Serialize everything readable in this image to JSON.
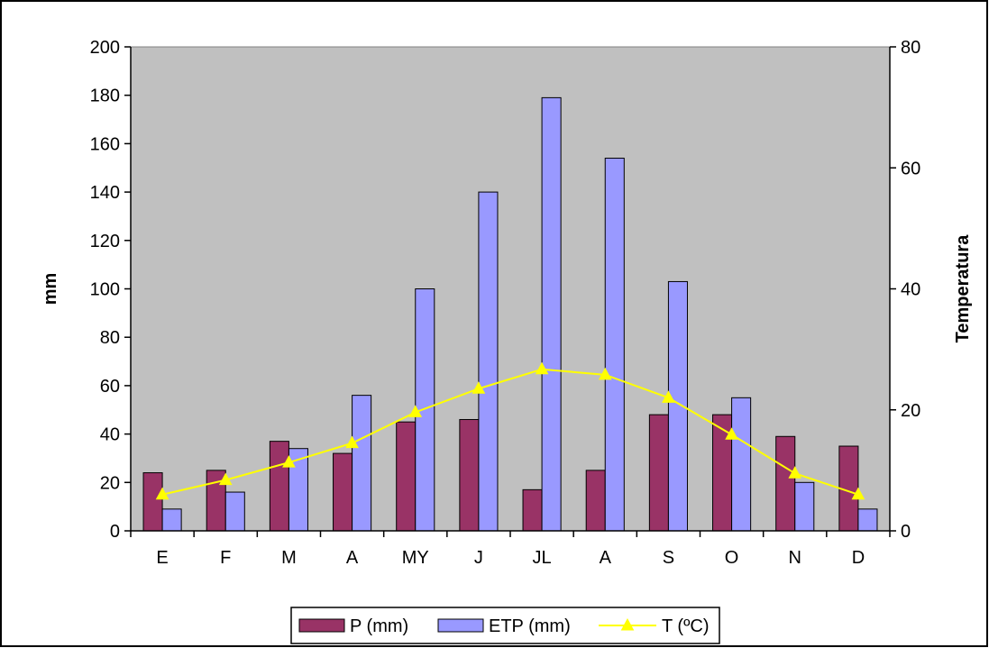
{
  "chart_data": {
    "type": "bar",
    "categories": [
      "E",
      "F",
      "M",
      "A",
      "MY",
      "J",
      "JL",
      "A",
      "S",
      "O",
      "N",
      "D"
    ],
    "series": [
      {
        "name": "P (mm)",
        "kind": "bar",
        "axis": "left",
        "color": "#993366",
        "values": [
          24,
          25,
          37,
          32,
          45,
          46,
          17,
          25,
          48,
          48,
          39,
          35
        ]
      },
      {
        "name": "ETP (mm)",
        "kind": "bar",
        "axis": "left",
        "color": "#9999FF",
        "values": [
          9,
          16,
          34,
          56,
          100,
          140,
          179,
          154,
          103,
          55,
          20,
          9
        ]
      },
      {
        "name": "T (ºC)",
        "kind": "line",
        "axis": "right",
        "color": "#FFFF00",
        "values": [
          6.0,
          8.4,
          11.3,
          14.5,
          19.6,
          23.5,
          26.7,
          25.8,
          22.0,
          15.9,
          9.5,
          6.0
        ]
      }
    ],
    "ylabel": "mm",
    "y2label": "Temperatura",
    "ylim": [
      0,
      200
    ],
    "yticks": [
      0,
      20,
      40,
      60,
      80,
      100,
      120,
      140,
      160,
      180,
      200
    ],
    "y2lim": [
      0,
      80
    ],
    "y2ticks": [
      0,
      20,
      40,
      60,
      80
    ],
    "plot_background": "#C0C0C0",
    "grid": false,
    "legend_position": "bottom"
  }
}
